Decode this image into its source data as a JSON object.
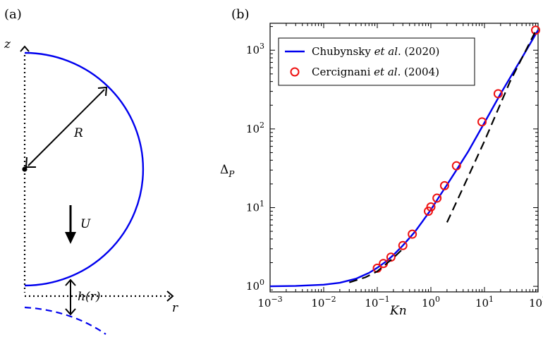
{
  "panel_a": {
    "panel_label": "(a)",
    "z_label": "z",
    "r_label": "r",
    "radius_label": "R",
    "velocity_label": "U",
    "gap_label": "h(r)"
  },
  "panel_b": {
    "panel_label": "(b)",
    "legend": {
      "series1": {
        "pre": "Chubynsky ",
        "it": "et al",
        "post": ". (2020)"
      },
      "series2": {
        "pre": "Cercignani ",
        "it": "et al",
        "post": ". (2004)"
      }
    }
  },
  "colors": {
    "theory": "#0000ee",
    "data": "#ee1111",
    "asymptote": "#000000",
    "sphere": "#0000ee"
  },
  "chart_data": {
    "type": "line",
    "xlabel": "Kn",
    "ylabel": "Δ_P",
    "xscale": "log",
    "yscale": "log",
    "xlim": [
      0.001,
      100
    ],
    "ylim": [
      0.85,
      2200
    ],
    "grid": false,
    "legend_position": "top-left",
    "x_tick_labels": [
      {
        "base": "10",
        "exp": "−3",
        "value": 0.001
      },
      {
        "base": "10",
        "exp": "−2",
        "value": 0.01
      },
      {
        "base": "10",
        "exp": "−1",
        "value": 0.1
      },
      {
        "base": "10",
        "exp": "0",
        "value": 1
      },
      {
        "base": "10",
        "exp": "1",
        "value": 10
      },
      {
        "base": "10",
        "exp": "2",
        "value": 100
      }
    ],
    "y_tick_labels": [
      {
        "base": "10",
        "exp": "0",
        "value": 1
      },
      {
        "base": "10",
        "exp": "1",
        "value": 10
      },
      {
        "base": "10",
        "exp": "2",
        "value": 100
      },
      {
        "base": "10",
        "exp": "3",
        "value": 1000
      }
    ],
    "series": [
      {
        "name": "Chubynsky et al. (2020)",
        "style": "solid",
        "color": "#0000ee",
        "x": [
          0.001,
          0.003,
          0.01,
          0.02,
          0.04,
          0.07,
          0.1,
          0.15,
          0.2,
          0.3,
          0.5,
          0.7,
          1.0,
          1.5,
          2.0,
          3.0,
          5.0,
          10,
          20,
          50,
          100
        ],
        "y": [
          1.0,
          1.01,
          1.05,
          1.11,
          1.25,
          1.48,
          1.72,
          2.1,
          2.5,
          3.3,
          4.9,
          6.7,
          9.4,
          14.5,
          19.5,
          30,
          52,
          120,
          280,
          800,
          1800
        ]
      },
      {
        "name": "Cercignani et al. (2004)",
        "style": "markers",
        "marker": "open-circle",
        "color": "#ee1111",
        "x": [
          0.1,
          0.13,
          0.18,
          0.3,
          0.45,
          0.9,
          1.0,
          1.3,
          1.8,
          3.0,
          9.0,
          18,
          90
        ],
        "y": [
          1.7,
          1.95,
          2.35,
          3.3,
          4.6,
          9.0,
          10.2,
          13.2,
          19.0,
          34,
          123,
          280,
          1800
        ]
      },
      {
        "name": "",
        "style": "dashed",
        "color": "#000000",
        "segments": [
          {
            "x": [
              0.03,
              0.06,
              0.1,
              0.2,
              0.3
            ],
            "y": [
              1.12,
              1.3,
              1.55,
              2.3,
              3.0
            ]
          },
          {
            "x": [
              2.0,
              4.0,
              10,
              30,
              90
            ],
            "y": [
              6.5,
              18,
              70,
              400,
              1750
            ]
          }
        ]
      }
    ]
  }
}
